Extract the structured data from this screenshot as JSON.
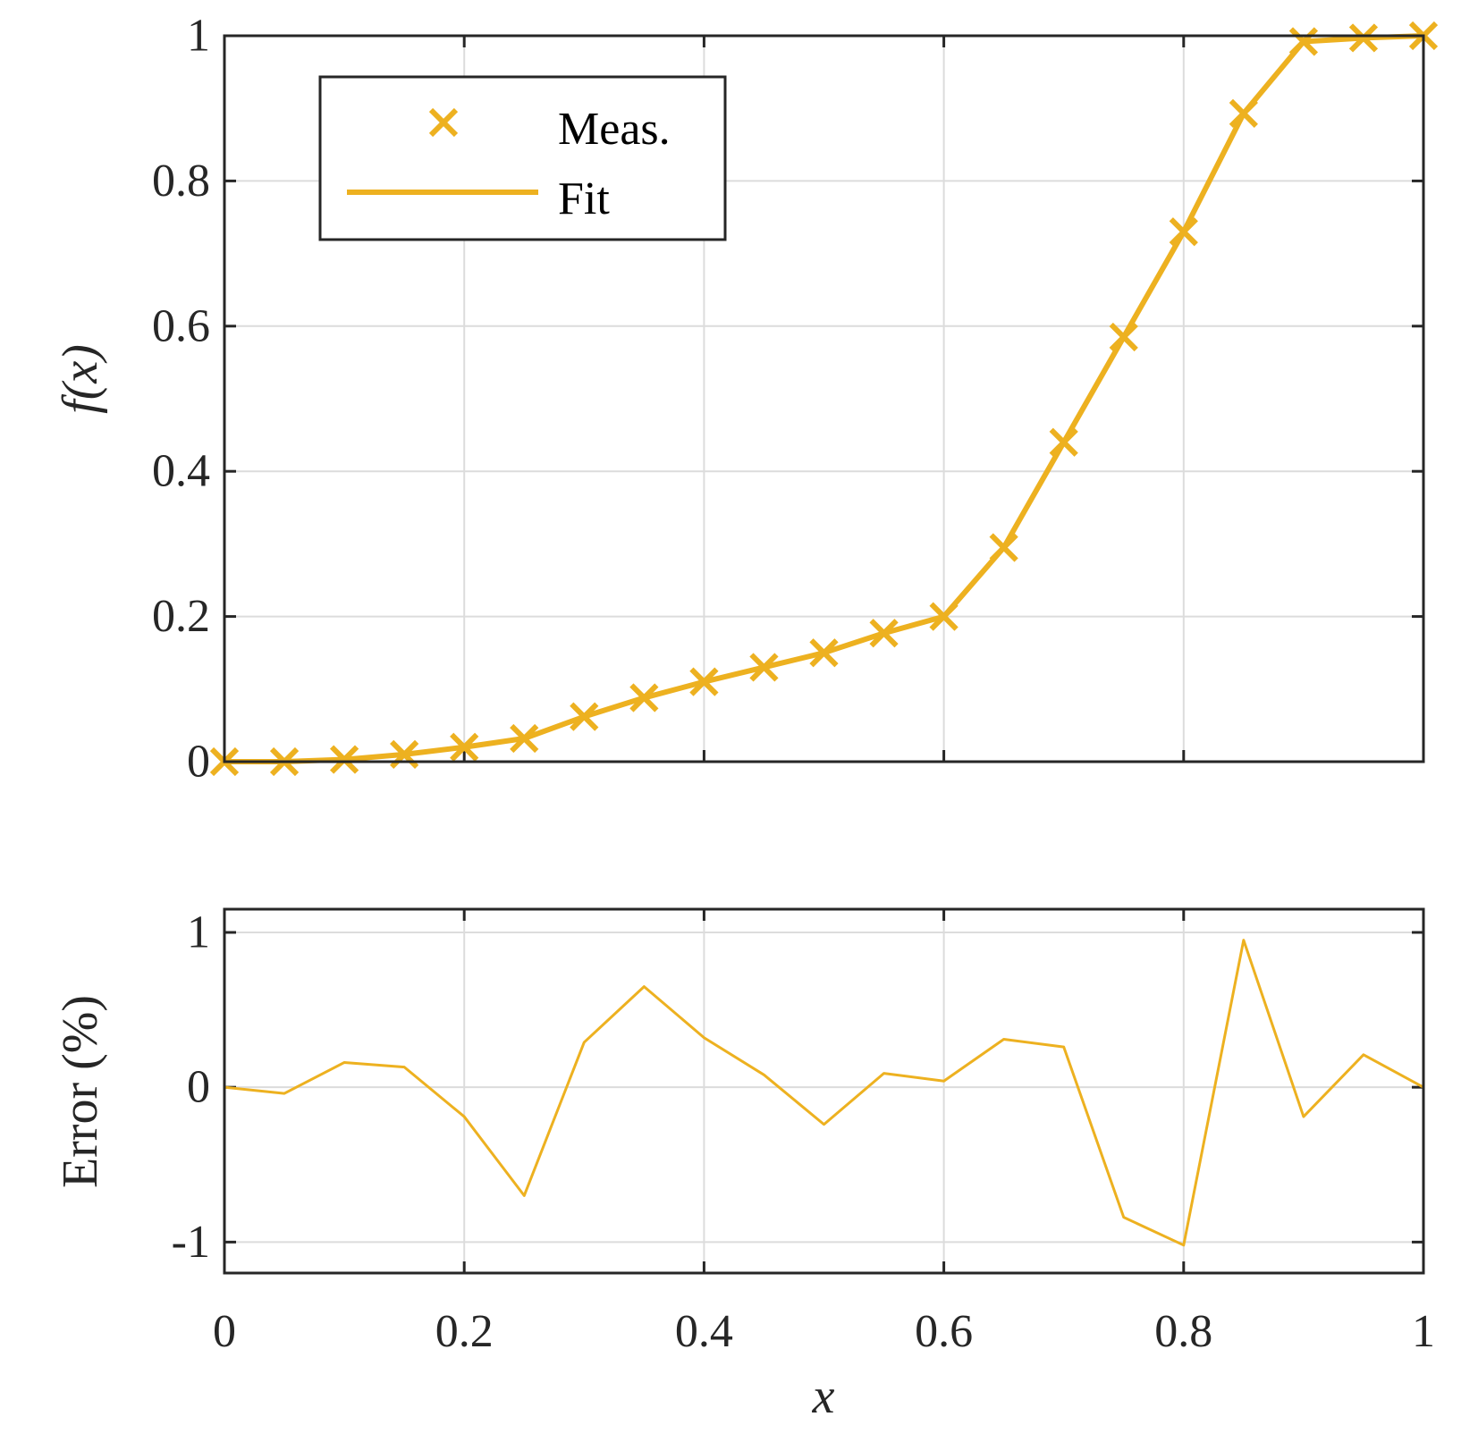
{
  "colors": {
    "series": "#EDB120",
    "axes": "#262626",
    "grid": "#dcdcdc",
    "background": "#ffffff"
  },
  "chart_data": [
    {
      "type": "line",
      "markers": "x",
      "xlim": [
        0,
        1
      ],
      "ylim": [
        0,
        1
      ],
      "xticks": [
        0,
        0.2,
        0.4,
        0.6,
        0.8,
        1
      ],
      "yticks": [
        0,
        0.2,
        0.4,
        0.6,
        0.8,
        1
      ],
      "ytick_labels": [
        "0",
        "0.2",
        "0.4",
        "0.6",
        "0.8",
        "1"
      ],
      "ylabel": "f(x)",
      "grid": true,
      "legend": {
        "position": "top-left",
        "entries": [
          {
            "label": "Meas.",
            "style": "marker"
          },
          {
            "label": "Fit",
            "style": "line"
          }
        ]
      },
      "x": [
        0,
        0.05,
        0.1,
        0.15,
        0.2,
        0.25,
        0.3,
        0.35,
        0.4,
        0.45,
        0.5,
        0.55,
        0.6,
        0.65,
        0.7,
        0.75,
        0.8,
        0.85,
        0.9,
        0.95,
        1
      ],
      "series": [
        {
          "name": "Meas.",
          "values": [
            0,
            0,
            0.003,
            0.01,
            0.02,
            0.032,
            0.062,
            0.088,
            0.11,
            0.13,
            0.15,
            0.177,
            0.2,
            0.295,
            0.44,
            0.585,
            0.73,
            0.893,
            0.992,
            0.997,
            1
          ]
        },
        {
          "name": "Fit",
          "values": [
            0,
            0,
            0.003,
            0.01,
            0.02,
            0.032,
            0.062,
            0.088,
            0.11,
            0.13,
            0.15,
            0.177,
            0.2,
            0.295,
            0.44,
            0.585,
            0.73,
            0.893,
            0.992,
            0.997,
            1
          ]
        }
      ]
    },
    {
      "type": "line",
      "xlim": [
        0,
        1
      ],
      "ylim": [
        -1.2,
        1.15
      ],
      "xticks": [
        0,
        0.2,
        0.4,
        0.6,
        0.8,
        1
      ],
      "xtick_labels": [
        "0",
        "0.2",
        "0.4",
        "0.6",
        "0.8",
        "1"
      ],
      "yticks": [
        -1,
        0,
        1
      ],
      "ytick_labels": [
        "-1",
        "0",
        "1"
      ],
      "xlabel": "x",
      "ylabel": "Error (%)",
      "grid": true,
      "x": [
        0,
        0.05,
        0.1,
        0.15,
        0.2,
        0.25,
        0.3,
        0.35,
        0.4,
        0.45,
        0.5,
        0.55,
        0.6,
        0.65,
        0.7,
        0.75,
        0.8,
        0.85,
        0.9,
        0.95,
        1
      ],
      "series": [
        {
          "values": [
            0,
            -0.04,
            0.16,
            0.13,
            -0.19,
            -0.7,
            0.29,
            0.65,
            0.32,
            0.08,
            -0.24,
            0.09,
            0.04,
            0.31,
            0.26,
            -0.84,
            -1.02,
            0.95,
            -0.19,
            0.21,
            0
          ]
        }
      ]
    }
  ]
}
